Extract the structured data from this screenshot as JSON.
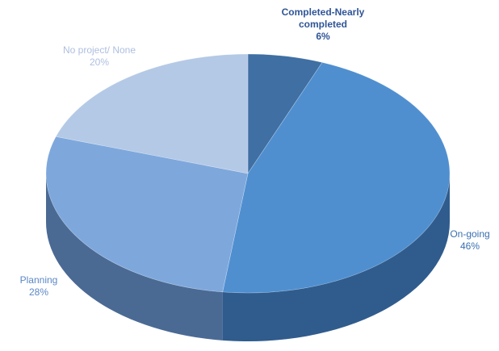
{
  "chart_data": {
    "type": "pie",
    "categories": [
      "Completed-Nearly completed",
      "On-going",
      "Planning",
      "No project/ None"
    ],
    "values": [
      6,
      46,
      28,
      20
    ],
    "value_labels": [
      "6%",
      "46%",
      "28%",
      "20%"
    ],
    "colors": [
      "#3f6fa3",
      "#4f8fd0",
      "#7ea8dc",
      "#b4c9e6"
    ]
  }
}
